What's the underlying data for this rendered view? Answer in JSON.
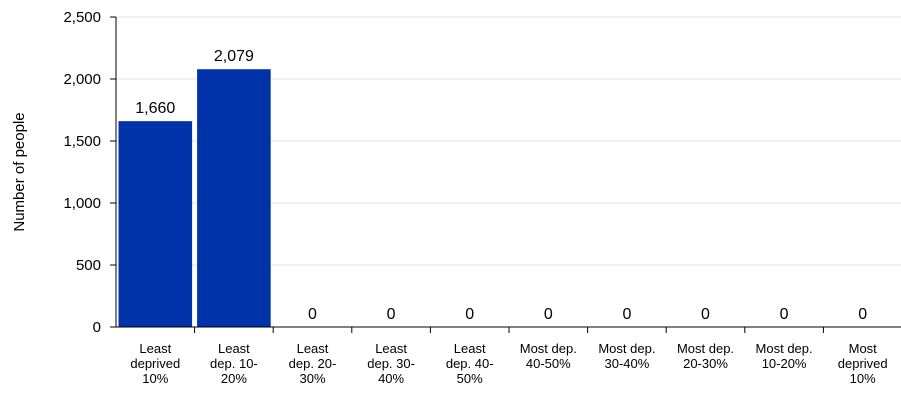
{
  "chart_data": {
    "type": "bar",
    "title": "",
    "xlabel": "",
    "ylabel": "Number of people",
    "ylim": [
      0,
      2500
    ],
    "yticks": [
      0,
      500,
      1000,
      1500,
      2000,
      2500
    ],
    "ytick_labels": [
      "0",
      "500",
      "1,000",
      "1,500",
      "2,000",
      "2,500"
    ],
    "categories": [
      [
        "Least",
        "deprived",
        "10%"
      ],
      [
        "Least",
        "dep. 10-",
        "20%"
      ],
      [
        "Least",
        "dep. 20-",
        "30%"
      ],
      [
        "Least",
        "dep. 30-",
        "40%"
      ],
      [
        "Least",
        "dep. 40-",
        "50%"
      ],
      [
        "Most dep.",
        "40-50%"
      ],
      [
        "Most dep.",
        "30-40%"
      ],
      [
        "Most dep.",
        "20-30%"
      ],
      [
        "Most dep.",
        "10-20%"
      ],
      [
        "Most",
        "deprived",
        "10%"
      ]
    ],
    "values": [
      1660,
      2079,
      0,
      0,
      0,
      0,
      0,
      0,
      0,
      0
    ],
    "value_labels": [
      "1,660",
      "2,079",
      "0",
      "0",
      "0",
      "0",
      "0",
      "0",
      "0",
      "0"
    ],
    "bar_color": "#0033aa",
    "grid": true,
    "grid_color": "#e6e6e6",
    "legend": "none"
  }
}
